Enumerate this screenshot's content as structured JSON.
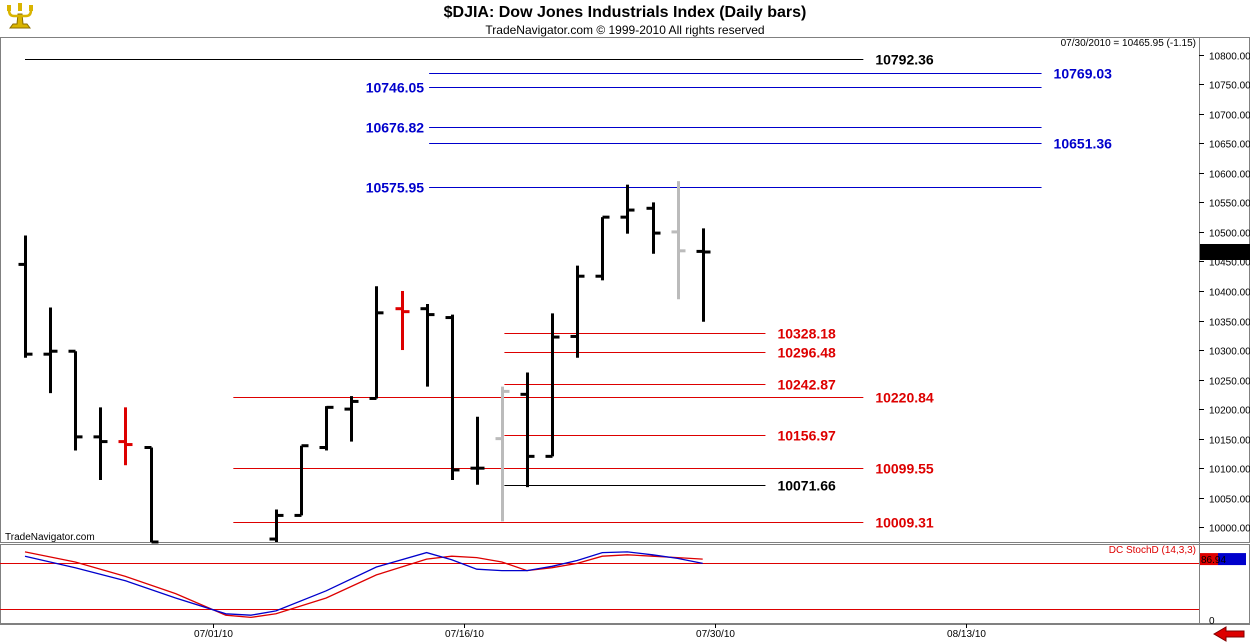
{
  "header": {
    "title": "$DJIA:  Dow Jones Industrials Index  (Daily bars)",
    "subtitle": "TradeNavigator.com © 1999-2010 All rights reserved",
    "readout": "07/30/2010 = 10465.95 (-1.15)",
    "watermark": "TradeNavigator.com",
    "logo_icon": "candelabra-logo-icon",
    "scroll_icon": "red-left-arrow-icon"
  },
  "colors": {
    "blue": "#0000cc",
    "red": "#dd0000",
    "black": "#000000",
    "grey": "#bbbbbb",
    "grid": "#c0c0c0"
  },
  "chart_data": [
    {
      "type": "bar",
      "subtype": "ohlc",
      "title": "$DJIA:  Dow Jones Industrials Index  (Daily bars)",
      "ylim": [
        9975,
        10830
      ],
      "yticks": [
        10000,
        10050,
        10100,
        10150,
        10200,
        10250,
        10300,
        10350,
        10400,
        10450,
        10500,
        10550,
        10600,
        10650,
        10700,
        10750,
        10800
      ],
      "ytick_labels": [
        "10000.00",
        "10050.00",
        "10100.00",
        "10150.00",
        "10200.00",
        "10250.00",
        "10300.00",
        "10350.00",
        "10400.00",
        "10450.00",
        "10500.00",
        "10550.00",
        "10600.00",
        "10650.00",
        "10700.00",
        "10750.00",
        "10800.00"
      ],
      "date_labels": [
        {
          "label": "07/01/10",
          "x": 7.5
        },
        {
          "label": "07/16/10",
          "x": 17.5
        },
        {
          "label": "07/30/10",
          "x": 27.5
        },
        {
          "label": "08/13/10",
          "x": 37.5
        }
      ],
      "last_value_label": "10465.95",
      "bars": [
        {
          "x": 0,
          "o": 10445,
          "h": 10494,
          "l": 10287,
          "c": 10293,
          "color": "black"
        },
        {
          "x": 1,
          "o": 10293,
          "h": 10372,
          "l": 10227,
          "c": 10298,
          "color": "black"
        },
        {
          "x": 2,
          "o": 10298,
          "h": 10298,
          "l": 10130,
          "c": 10153,
          "color": "black"
        },
        {
          "x": 3,
          "o": 10153,
          "h": 10203,
          "l": 10080,
          "c": 10145,
          "color": "black"
        },
        {
          "x": 4,
          "o": 10145,
          "h": 10203,
          "l": 10105,
          "c": 10140,
          "color": "red"
        },
        {
          "x": 5,
          "o": 10135,
          "h": 10135,
          "l": 9970,
          "c": 9975,
          "color": "black"
        },
        {
          "x": 10,
          "o": 9980,
          "h": 10030,
          "l": 9970,
          "c": 10020,
          "color": "black"
        },
        {
          "x": 11,
          "o": 10020,
          "h": 10138,
          "l": 10020,
          "c": 10138,
          "color": "black"
        },
        {
          "x": 12,
          "o": 10135,
          "h": 10205,
          "l": 10130,
          "c": 10203,
          "color": "black"
        },
        {
          "x": 13,
          "o": 10200,
          "h": 10222,
          "l": 10145,
          "c": 10213,
          "color": "black"
        },
        {
          "x": 14,
          "o": 10218,
          "h": 10408,
          "l": 10218,
          "c": 10363,
          "color": "black"
        },
        {
          "x": 15,
          "o": 10370,
          "h": 10400,
          "l": 10300,
          "c": 10365,
          "color": "red"
        },
        {
          "x": 16,
          "o": 10370,
          "h": 10378,
          "l": 10238,
          "c": 10360,
          "color": "black"
        },
        {
          "x": 17,
          "o": 10355,
          "h": 10360,
          "l": 10080,
          "c": 10097,
          "color": "black"
        },
        {
          "x": 18,
          "o": 10100,
          "h": 10187,
          "l": 10072,
          "c": 10100,
          "color": "black"
        },
        {
          "x": 19,
          "o": 10150,
          "h": 10238,
          "l": 10010,
          "c": 10230,
          "color": "grey"
        },
        {
          "x": 20,
          "o": 10225,
          "h": 10262,
          "l": 10068,
          "c": 10120,
          "color": "black"
        },
        {
          "x": 21,
          "o": 10120,
          "h": 10362,
          "l": 10120,
          "c": 10322,
          "color": "black"
        },
        {
          "x": 22,
          "o": 10323,
          "h": 10443,
          "l": 10287,
          "c": 10425,
          "color": "black"
        },
        {
          "x": 23,
          "o": 10425,
          "h": 10525,
          "l": 10418,
          "c": 10525,
          "color": "black"
        },
        {
          "x": 24,
          "o": 10525,
          "h": 10580,
          "l": 10497,
          "c": 10537,
          "color": "black"
        },
        {
          "x": 25,
          "o": 10540,
          "h": 10550,
          "l": 10463,
          "c": 10498,
          "color": "black"
        },
        {
          "x": 26,
          "o": 10500,
          "h": 10586,
          "l": 10386,
          "c": 10468,
          "color": "grey"
        },
        {
          "x": 27,
          "o": 10467,
          "h": 10506,
          "l": 10348,
          "c": 10466,
          "color": "black"
        }
      ],
      "levels": [
        {
          "value": 10792.36,
          "label": "10792.36",
          "color": "black",
          "x0": 0,
          "x1": 33.4,
          "label_side": "right"
        },
        {
          "value": 10769.03,
          "label": "10769.03",
          "color": "blue",
          "x0": 16.1,
          "x1": 40.5,
          "label_side": "right"
        },
        {
          "value": 10746.05,
          "label": "10746.05",
          "color": "blue",
          "x0": 16.1,
          "x1": 40.5,
          "label_side": "left"
        },
        {
          "value": 10676.82,
          "label": "10676.82",
          "color": "blue",
          "x0": 16.1,
          "x1": 40.5,
          "label_side": "left"
        },
        {
          "value": 10651.36,
          "label": "10651.36",
          "color": "blue",
          "x0": 16.1,
          "x1": 40.5,
          "label_side": "right"
        },
        {
          "value": 10575.95,
          "label": "10575.95",
          "color": "blue",
          "x0": 16.1,
          "x1": 40.5,
          "label_side": "left"
        },
        {
          "value": 10328.18,
          "label": "10328.18",
          "color": "red",
          "x0": 19.1,
          "x1": 29.5,
          "label_side": "right"
        },
        {
          "value": 10296.48,
          "label": "10296.48",
          "color": "red",
          "x0": 19.1,
          "x1": 29.5,
          "label_side": "right"
        },
        {
          "value": 10242.87,
          "label": "10242.87",
          "color": "red",
          "x0": 19.1,
          "x1": 29.5,
          "label_side": "right"
        },
        {
          "value": 10220.84,
          "label": "10220.84",
          "color": "red",
          "x0": 8.3,
          "x1": 33.4,
          "label_side": "right"
        },
        {
          "value": 10156.97,
          "label": "10156.97",
          "color": "red",
          "x0": 19.1,
          "x1": 29.5,
          "label_side": "right"
        },
        {
          "value": 10099.55,
          "label": "10099.55",
          "color": "red",
          "x0": 8.3,
          "x1": 33.4,
          "label_side": "right"
        },
        {
          "value": 10071.66,
          "label": "10071.66",
          "color": "black",
          "x0": 19.1,
          "x1": 29.5,
          "label_side": "right"
        },
        {
          "value": 10009.31,
          "label": "10009.31",
          "color": "red",
          "x0": 8.3,
          "x1": 33.4,
          "label_side": "right"
        }
      ]
    },
    {
      "type": "line",
      "title": "DC StochD (14,3,3)",
      "ylim": [
        0,
        100
      ],
      "yticks": [
        0
      ],
      "ytick_labels": [
        "0"
      ],
      "last_value_label": "86.94",
      "series": [
        {
          "color": "red",
          "x": [
            0,
            2,
            4,
            6,
            8,
            9,
            10,
            12,
            14,
            16,
            17,
            18,
            19,
            20,
            21,
            22,
            23,
            24,
            25,
            26,
            27
          ],
          "values": [
            96,
            82,
            62,
            38,
            8,
            5,
            10,
            32,
            64,
            86,
            90,
            88,
            82,
            70,
            74,
            80,
            90,
            92,
            90,
            88,
            86
          ]
        },
        {
          "color": "blue",
          "x": [
            0,
            2,
            4,
            6,
            8,
            9,
            10,
            12,
            14,
            16,
            17,
            18,
            19,
            20,
            21,
            22,
            23,
            24,
            25,
            26,
            27
          ],
          "values": [
            90,
            74,
            56,
            32,
            10,
            8,
            14,
            42,
            75,
            95,
            85,
            72,
            70,
            70,
            76,
            84,
            95,
            96,
            92,
            87,
            80
          ]
        }
      ]
    }
  ]
}
